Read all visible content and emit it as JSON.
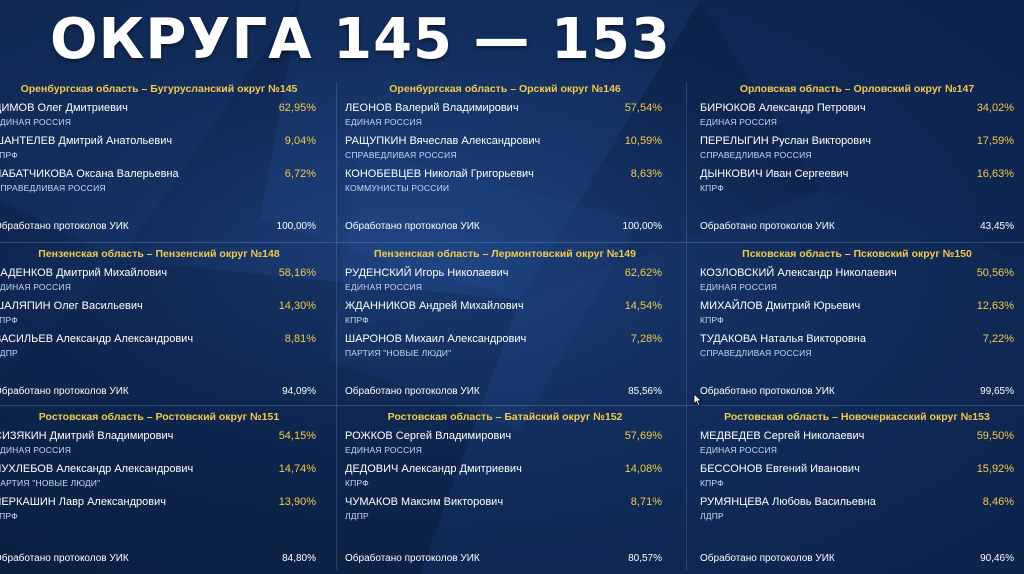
{
  "title": "ОКРУГА 145 — 153",
  "processed_label": "Обработано протоколов УИК",
  "districts": [
    {
      "title": "Оренбургская область – Бугурусланский округ №145",
      "candidates": [
        {
          "name": "ДИМОВ Олег Дмитриевич",
          "party": "ЕДИНАЯ РОССИЯ",
          "pct": "62,95%"
        },
        {
          "name": "ШАНТЕЛЕВ Дмитрий Анатольевич",
          "party": "КПРФ",
          "pct": "9,04%"
        },
        {
          "name": "ЧАБАТЧИКОВА Оксана Валерьевна",
          "party": "СПРАВЕДЛИВАЯ РОССИЯ",
          "pct": "6,72%"
        }
      ],
      "processed_label": "Обработано протоколов УИК",
      "processed": "100,00%"
    },
    {
      "title": "Оренбургская область – Орский округ №146",
      "candidates": [
        {
          "name": "ЛЕОНОВ Валерий Владимирович",
          "party": "ЕДИНАЯ РОССИЯ",
          "pct": "57,54%"
        },
        {
          "name": "РАЩУПКИН Вячеслав Александрович",
          "party": "СПРАВЕДЛИВАЯ РОССИЯ",
          "pct": "10,59%"
        },
        {
          "name": "КОНОБЕВЦЕВ Николай Григорьевич",
          "party": "КОММУНИСТЫ РОССИИ",
          "pct": "8,63%"
        }
      ],
      "processed_label": "Обработано протоколов УИК",
      "processed": "100,00%"
    },
    {
      "title": "Орловская область – Орловский округ №147",
      "candidates": [
        {
          "name": "БИРЮКОВ Александр Петрович",
          "party": "ЕДИНАЯ РОССИЯ",
          "pct": "34,02%"
        },
        {
          "name": "ПЕРЕЛЫГИН Руслан Викторович",
          "party": "СПРАВЕДЛИВАЯ РОССИЯ",
          "pct": "17,59%"
        },
        {
          "name": "ДЫНКОВИЧ Иван Сергеевич",
          "party": "КПРФ",
          "pct": "16,63%"
        }
      ],
      "processed_label": "Обработано протоколов УИК",
      "processed": "43,45%"
    },
    {
      "title": "Пензенская область – Пензенский округ №148",
      "candidates": [
        {
          "name": "КАДЕНКОВ Дмитрий Михайлович",
          "party": "ЕДИНАЯ РОССИЯ",
          "pct": "58,16%"
        },
        {
          "name": "ШАЛЯПИН Олег Васильевич",
          "party": "КПРФ",
          "pct": "14,30%"
        },
        {
          "name": "ВАСИЛЬЕВ Александр Александрович",
          "party": "ЛДПР",
          "pct": "8,81%"
        }
      ],
      "processed_label": "Обработано протоколов УИК",
      "processed": "94,09%"
    },
    {
      "title": "Пензенская область – Лермонтовский округ №149",
      "candidates": [
        {
          "name": "РУДЕНСКИЙ Игорь Николаевич",
          "party": "ЕДИНАЯ РОССИЯ",
          "pct": "62,62%"
        },
        {
          "name": "ЖДАННИКОВ Андрей Михайлович",
          "party": "КПРФ",
          "pct": "14,54%"
        },
        {
          "name": "ШАРОНОВ Михаил Александрович",
          "party": "ПАРТИЯ \"НОВЫЕ ЛЮДИ\"",
          "pct": "7,28%"
        }
      ],
      "processed_label": "Обработано протоколов УИК",
      "processed": "85,56%"
    },
    {
      "title": "Псковская область – Псковский округ №150",
      "candidates": [
        {
          "name": "КОЗЛОВСКИЙ Александр Николаевич",
          "party": "ЕДИНАЯ РОССИЯ",
          "pct": "50,56%"
        },
        {
          "name": "МИХАЙЛОВ Дмитрий Юрьевич",
          "party": "КПРФ",
          "pct": "12,63%"
        },
        {
          "name": "ТУДАКОВА Наталья Викторовна",
          "party": "СПРАВЕДЛИВАЯ РОССИЯ",
          "pct": "7,22%"
        }
      ],
      "processed_label": "Обработано протоколов УИК",
      "processed": "99,65%"
    },
    {
      "title": "Ростовская область – Ростовский округ №151",
      "candidates": [
        {
          "name": "СИЗЯКИН Дмитрий Владимирович",
          "party": "ЕДИНАЯ РОССИЯ",
          "pct": "54,15%"
        },
        {
          "name": "ЧУХЛЕБОВ Александр Александрович",
          "party": "ПАРТИЯ \"НОВЫЕ ЛЮДИ\"",
          "pct": "14,74%"
        },
        {
          "name": "ЧЕРКАШИН Лавр Александрович",
          "party": "КПРФ",
          "pct": "13,90%"
        }
      ],
      "processed_label": "Обработано протоколов УИК",
      "processed": "84,80%"
    },
    {
      "title": "Ростовская область – Батайский округ №152",
      "candidates": [
        {
          "name": "РОЖКОВ Сергей Владимирович",
          "party": "ЕДИНАЯ РОССИЯ",
          "pct": "57,69%"
        },
        {
          "name": "ДЕДОВИЧ Александр Дмитриевич",
          "party": "КПРФ",
          "pct": "14,08%"
        },
        {
          "name": "ЧУМАКОВ Максим Викторович",
          "party": "ЛДПР",
          "pct": "8,71%"
        }
      ],
      "processed_label": "Обработано протоколов УИК",
      "processed": "80,57%"
    },
    {
      "title": "Ростовская область – Новочеркасский округ №153",
      "candidates": [
        {
          "name": "МЕДВЕДЕВ Сергей Николаевич",
          "party": "ЕДИНАЯ РОССИЯ",
          "pct": "59,50%"
        },
        {
          "name": "БЕССОНОВ Евгений Иванович",
          "party": "КПРФ",
          "pct": "15,92%"
        },
        {
          "name": "РУМЯНЦЕВА Любовь Васильевна",
          "party": "ЛДПР",
          "pct": "8,46%"
        }
      ],
      "processed_label": "Обработано протоколов УИК",
      "processed": "90,46%"
    }
  ]
}
